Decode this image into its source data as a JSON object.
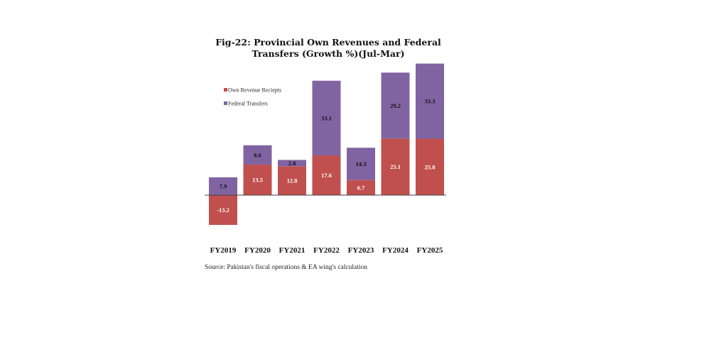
{
  "chart_data": {
    "type": "bar",
    "stacked": true,
    "title_lines": [
      "Fig-22: Provincial Own Revenues and Federal",
      "Transfers (Growth %)(Jul-Mar)"
    ],
    "categories": [
      "FY2019",
      "FY2020",
      "FY2021",
      "FY2022",
      "FY2023",
      "FY2024",
      "FY2025"
    ],
    "series": [
      {
        "name": "Own Revenue Reciepts",
        "color": "#c0504d",
        "label_color": "#ffffff",
        "values": [
          -13.2,
          13.5,
          12.8,
          17.6,
          6.7,
          25.1,
          25.0
        ],
        "labels": [
          "-13.2",
          "13.5",
          "12.8",
          "17.6",
          "6.7",
          "25.1",
          "25.0"
        ]
      },
      {
        "name": "Federal Transfers",
        "color": "#8064a2",
        "label_color": "#111111",
        "values": [
          7.9,
          8.6,
          2.8,
          33.1,
          14.3,
          29.2,
          33.3
        ],
        "labels": [
          "7.9",
          "8.6",
          "2.8",
          "33.1",
          "14.3",
          "29.2",
          "33.3"
        ]
      }
    ],
    "legend_position": "top-left",
    "grid": false,
    "ylim": [
      -15,
      60
    ]
  },
  "source_text": "Source: Pakistan's fiscal operations & EA wing's calculation"
}
